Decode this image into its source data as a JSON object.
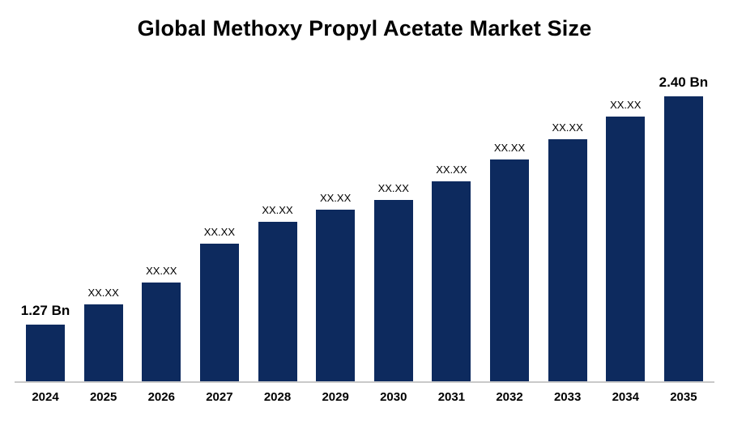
{
  "chart_data": {
    "type": "bar",
    "title": "Global Methoxy Propyl Acetate Market Size",
    "categories": [
      "2024",
      "2025",
      "2026",
      "2027",
      "2028",
      "2029",
      "2030",
      "2031",
      "2032",
      "2033",
      "2034",
      "2035"
    ],
    "values": [
      1.27,
      1.37,
      1.48,
      1.67,
      1.78,
      1.84,
      1.89,
      1.98,
      2.09,
      2.19,
      2.3,
      2.4
    ],
    "values_estimated_from_pixels": true,
    "bar_labels": [
      "1.27 Bn",
      "XX.XX",
      "XX.XX",
      "XX.XX",
      "XX.XX",
      "XX.XX",
      "XX.XX",
      "XX.XX",
      "XX.XX",
      "XX.XX",
      "XX.XX",
      "2.40 Bn"
    ],
    "unit": "Bn",
    "xlabel": "",
    "ylabel": "",
    "ylim": [
      0.99,
      2.41
    ],
    "grid": false,
    "legend": false,
    "colors": {
      "bar": "#0d2a5e",
      "axis_line": "#c9c9c9",
      "text": "#000000",
      "background": "#ffffff"
    }
  }
}
